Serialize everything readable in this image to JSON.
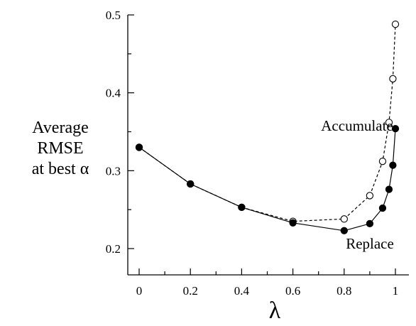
{
  "chart_data": {
    "type": "line",
    "x": [
      0,
      0.2,
      0.4,
      0.6,
      0.8,
      0.9,
      0.95,
      0.975,
      0.99,
      1
    ],
    "series": [
      {
        "name": "Accumulate",
        "marker": "open-circle",
        "line_style": "dashed",
        "color": "#000000",
        "values": [
          0.33,
          0.283,
          0.253,
          0.235,
          0.238,
          0.268,
          0.312,
          0.362,
          0.418,
          0.488
        ]
      },
      {
        "name": "Replace",
        "marker": "filled-circle",
        "line_style": "solid",
        "color": "#000000",
        "values": [
          0.33,
          0.283,
          0.253,
          0.233,
          0.223,
          0.232,
          0.252,
          0.276,
          0.307,
          0.354
        ]
      }
    ],
    "xlabel": "λ",
    "ylabel_lines": [
      "Average",
      "RMSE",
      "at best α"
    ],
    "x_ticks": [
      0,
      0.2,
      0.4,
      0.6,
      0.8,
      1
    ],
    "x_tick_labels": [
      "0",
      "0.2",
      "0.4",
      "0.6",
      "0.8",
      "1"
    ],
    "y_ticks": [
      0.2,
      0.3,
      0.4,
      0.5
    ],
    "y_tick_labels": [
      "0.2",
      "0.3",
      "0.4",
      "0.5"
    ],
    "xlim": [
      0,
      1
    ],
    "ylim": [
      0.2,
      0.5
    ],
    "grid": false,
    "legend": "none"
  }
}
